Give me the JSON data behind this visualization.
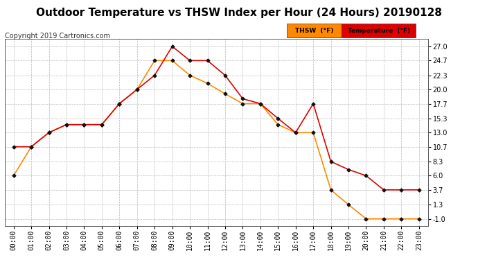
{
  "title": "Outdoor Temperature vs THSW Index per Hour (24 Hours) 20190128",
  "copyright": "Copyright 2019 Cartronics.com",
  "hours": [
    "00:00",
    "01:00",
    "02:00",
    "03:00",
    "04:00",
    "05:00",
    "06:00",
    "07:00",
    "08:00",
    "09:00",
    "10:00",
    "11:00",
    "12:00",
    "13:00",
    "14:00",
    "15:00",
    "16:00",
    "17:00",
    "18:00",
    "19:00",
    "20:00",
    "21:00",
    "22:00",
    "23:00"
  ],
  "temperature": [
    10.7,
    10.7,
    13.0,
    14.3,
    14.3,
    14.3,
    17.7,
    20.0,
    22.3,
    27.0,
    24.7,
    24.7,
    22.3,
    18.5,
    17.7,
    15.3,
    13.0,
    17.7,
    8.3,
    7.0,
    6.0,
    3.7,
    3.7,
    3.7
  ],
  "thsw": [
    6.0,
    10.7,
    13.0,
    14.3,
    14.3,
    14.3,
    17.7,
    20.0,
    24.7,
    24.7,
    22.3,
    21.0,
    19.3,
    17.7,
    17.7,
    14.3,
    13.0,
    13.0,
    3.7,
    1.3,
    -1.0,
    -1.0,
    -1.0,
    -1.0
  ],
  "temp_color": "#dd0000",
  "thsw_color": "#ff8800",
  "marker": "D",
  "marker_color": "#111111",
  "marker_size": 2.5,
  "line_width": 1.2,
  "yticks": [
    27.0,
    24.7,
    22.3,
    20.0,
    17.7,
    15.3,
    13.0,
    10.7,
    8.3,
    6.0,
    3.7,
    1.3,
    -1.0
  ],
  "ylim": [
    -2.2,
    28.2
  ],
  "background_color": "#ffffff",
  "plot_bg_color": "#ffffff",
  "grid_color": "#bbbbbb",
  "title_fontsize": 11,
  "tick_fontsize": 7,
  "copyright_fontsize": 7,
  "legend_thsw_label": "THSW  (°F)",
  "legend_temp_label": "Temperature  (°F)",
  "thsw_legend_color": "#ff8800",
  "temp_legend_color": "#dd0000"
}
